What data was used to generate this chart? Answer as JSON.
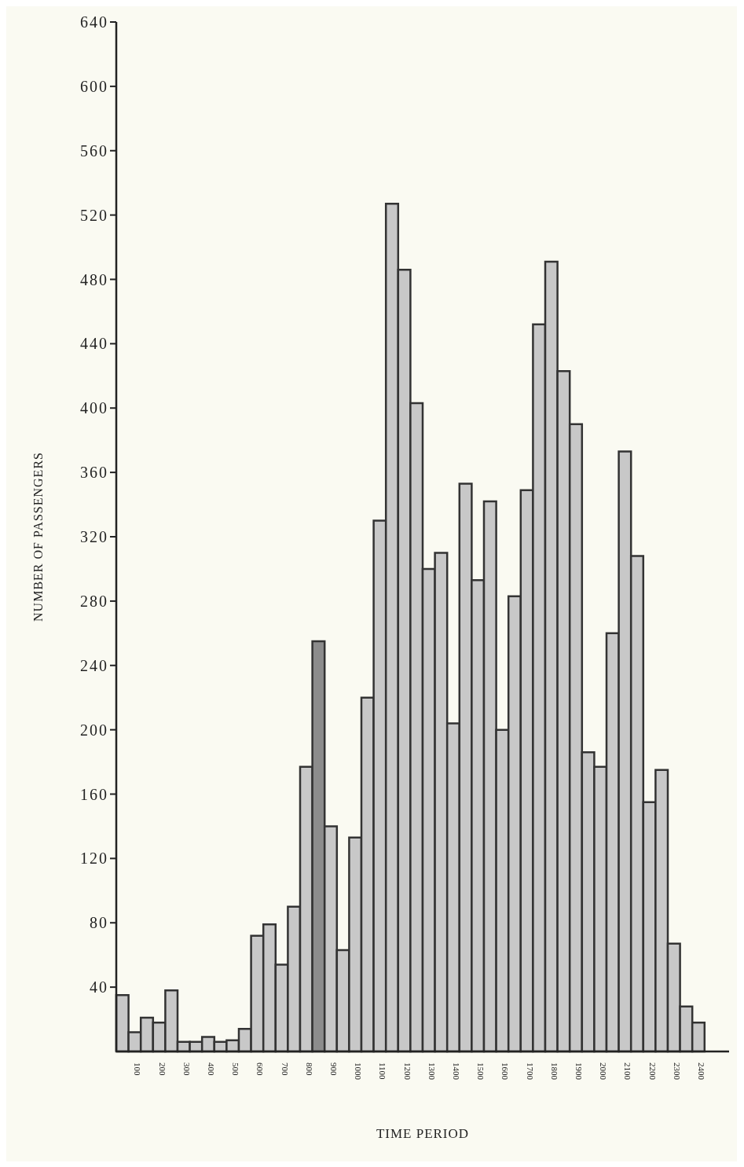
{
  "chart_data": {
    "type": "histogram",
    "xlabel": "TIME PERIOD",
    "ylabel": "NUMBER OF PASSENGERS",
    "bins": [
      0,
      50,
      100,
      150,
      200,
      250,
      300,
      350,
      400,
      450,
      500,
      550,
      600,
      650,
      700,
      750,
      800,
      850,
      900,
      950,
      1000,
      1050,
      1100,
      1150,
      1200,
      1250,
      1300,
      1350,
      1400,
      1450,
      1500,
      1550,
      1600,
      1650,
      1700,
      1750,
      1800,
      1850,
      1900,
      1950,
      2000,
      2050,
      2100,
      2150,
      2200,
      2250,
      2300,
      2350,
      2400
    ],
    "values": [
      35,
      12,
      21,
      18,
      38,
      6,
      6,
      9,
      6,
      7,
      14,
      72,
      79,
      54,
      90,
      177,
      255,
      140,
      63,
      133,
      220,
      330,
      527,
      486,
      403,
      300,
      310,
      204,
      353,
      293,
      342,
      200,
      283,
      349,
      452,
      491,
      423,
      390,
      186,
      177,
      260,
      373,
      308,
      155,
      175,
      67,
      28,
      18
    ],
    "colors": [
      "#c8c8c8",
      "#c8c8c8",
      "#c8c8c8",
      "#c8c8c8",
      "#c8c8c8",
      "#c8c8c8",
      "#c8c8c8",
      "#c8c8c8",
      "#c8c8c8",
      "#c8c8c8",
      "#c8c8c8",
      "#c8c8c8",
      "#c8c8c8",
      "#c8c8c8",
      "#c8c8c8",
      "#c8c8c8",
      "#8c8c8c",
      "#c8c8c8",
      "#c8c8c8",
      "#c8c8c8",
      "#c8c8c8",
      "#c8c8c8",
      "#c8c8c8",
      "#c8c8c8",
      "#c8c8c8",
      "#c8c8c8",
      "#c8c8c8",
      "#c8c8c8",
      "#c8c8c8",
      "#c8c8c8",
      "#c8c8c8",
      "#c8c8c8",
      "#c8c8c8",
      "#c8c8c8",
      "#c8c8c8",
      "#c8c8c8",
      "#c8c8c8",
      "#c8c8c8",
      "#c8c8c8",
      "#c8c8c8",
      "#c8c8c8",
      "#c8c8c8",
      "#c8c8c8",
      "#c8c8c8",
      "#c8c8c8",
      "#c8c8c8",
      "#c8c8c8",
      "#c8c8c8"
    ],
    "xlim": [
      0,
      2500
    ],
    "xticks": [
      100,
      200,
      300,
      400,
      500,
      600,
      700,
      800,
      900,
      1000,
      1100,
      1200,
      1300,
      1400,
      1500,
      1600,
      1700,
      1800,
      1900,
      2000,
      2100,
      2200,
      2300,
      2400
    ],
    "ylim": [
      0,
      640
    ],
    "yticks": [
      40,
      80,
      120,
      160,
      200,
      240,
      280,
      320,
      360,
      400,
      440,
      480,
      520,
      560,
      600,
      640
    ],
    "grid": false
  }
}
